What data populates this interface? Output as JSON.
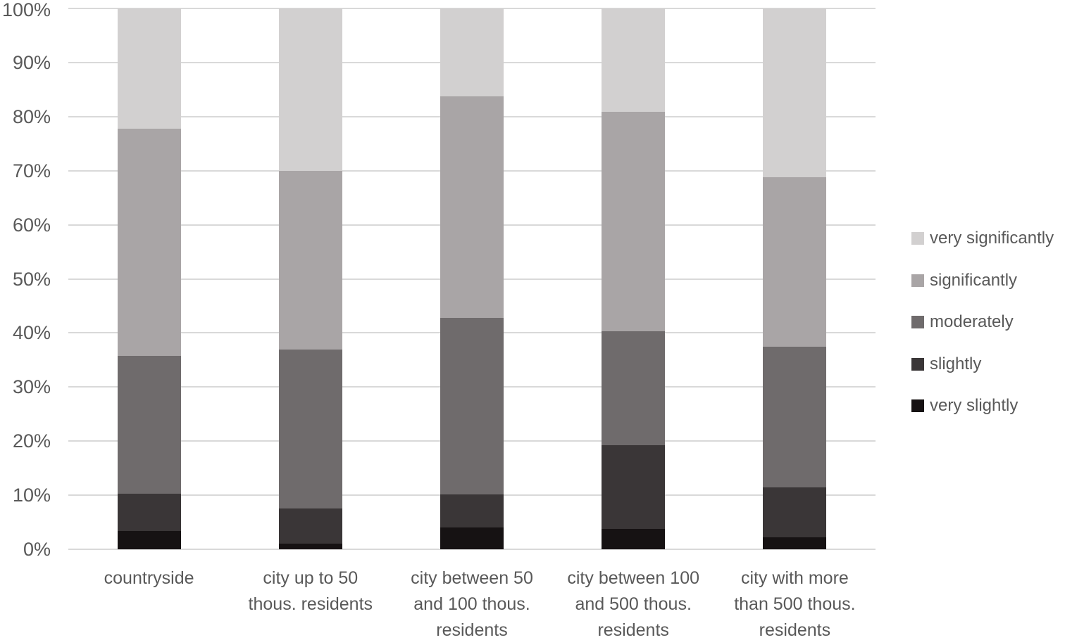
{
  "chart_data": {
    "type": "bar",
    "subtype": "100-percent-stacked-column",
    "title": "",
    "xlabel": "",
    "ylabel": "",
    "grid": true,
    "gridline_color": "#d9d9d9",
    "tick_label_color": "#595959",
    "background_color": "#ffffff",
    "categories": [
      "countryside",
      "city up to 50 thous. residents",
      "city between 50 and 100 thous. residents",
      "city between 100 and 500 thous. residents",
      "city with more than 500 thous. residents"
    ],
    "categories_display": [
      "countryside",
      "city up to 50\nthous. residents",
      "city between 50\nand 100 thous.\nresidents",
      "city between 100\nand 500 thous.\nresidents",
      "city with more\nthan 500 thous.\nresidents"
    ],
    "series": [
      {
        "name": "very slightly",
        "color": "#161213",
        "values": [
          3.4,
          1.0,
          4.0,
          3.8,
          2.2
        ]
      },
      {
        "name": "slightly",
        "color": "#3a3637",
        "values": [
          6.9,
          6.5,
          6.2,
          15.5,
          9.2
        ]
      },
      {
        "name": "moderately",
        "color": "#6f6b6c",
        "values": [
          25.5,
          29.4,
          32.6,
          21.0,
          26.1
        ]
      },
      {
        "name": "significantly",
        "color": "#a9a5a6",
        "values": [
          42.0,
          33.0,
          41.0,
          40.6,
          31.3
        ]
      },
      {
        "name": "very significantly",
        "color": "#d2d0d0",
        "values": [
          22.2,
          30.1,
          16.2,
          19.1,
          31.2
        ]
      }
    ],
    "legend": {
      "position": "right",
      "entries": [
        "very significantly",
        "significantly",
        "moderately",
        "slightly",
        "very slightly"
      ]
    },
    "y_axis": {
      "min": 0,
      "max": 100,
      "unit": "%",
      "ticks": [
        "0%",
        "10%",
        "20%",
        "30%",
        "40%",
        "50%",
        "60%",
        "70%",
        "80%",
        "90%",
        "100%"
      ]
    }
  }
}
